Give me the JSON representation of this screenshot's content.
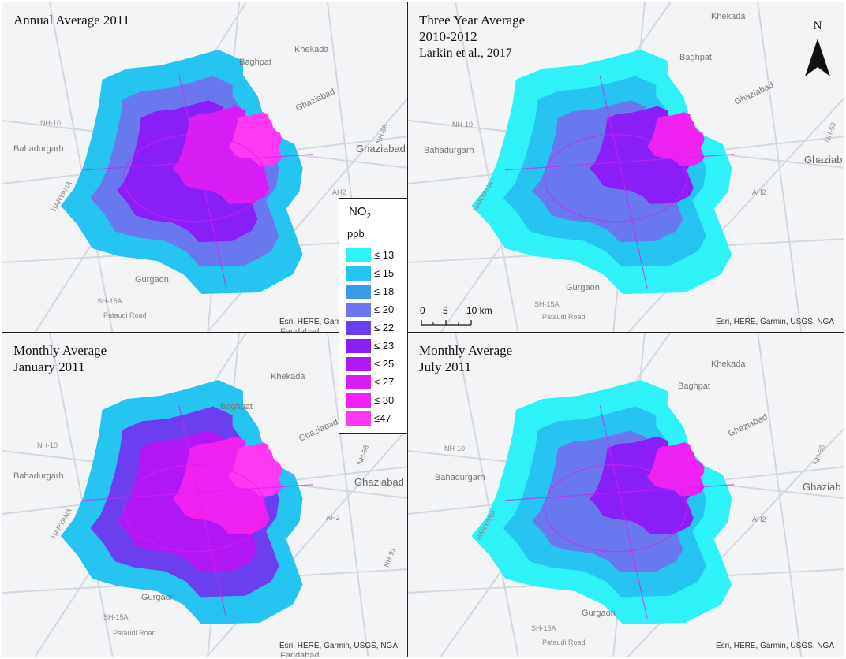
{
  "panels": [
    {
      "id": "annual",
      "title_lines": [
        "Annual Average 2011"
      ],
      "attribution": "Esri, HERE, Garmin, USGS, NGA",
      "labels": {
        "khekada": "Khekada",
        "baghpat": "Baghpat",
        "ghaziabad_small": "Ghaziabad",
        "ghaziabad": "Ghaziabad",
        "bahadurgarh": "Bahadurgarh",
        "haryana": "HARYANA",
        "gurgaon": "Gurgaon",
        "nh10": "NH-10",
        "nh58": "NH-58",
        "ah2": "AH2",
        "sh15a": "SH-15A",
        "pataudi": "Pataudi Road",
        "faridabad": "Faridabad"
      },
      "intensity": "medium"
    },
    {
      "id": "three-year",
      "title_lines": [
        "Three Year Average",
        "2010-2012",
        "Larkin et al., 2017"
      ],
      "attribution": "Esri, HERE, Garmin, USGS, NGA",
      "labels": {
        "khekada": "Khekada",
        "baghpat": "Baghpat",
        "ghaziabad_small": "Ghaziabad",
        "ghaziabad": "Ghaziab",
        "bahadurgarh": "Bahadurgarh",
        "haryana": "HARYANA",
        "gurgaon": "Gurgaon",
        "nh10": "NH-10",
        "nh58": "NH-58",
        "ah2": "AH2",
        "sh15a": "SH-15A",
        "pataudi": "Pataudi Road"
      },
      "intensity": "low"
    },
    {
      "id": "january",
      "title_lines": [
        "Monthly Average",
        "January 2011"
      ],
      "attribution": "Esri, HERE, Garmin, USGS, NGA",
      "labels": {
        "khekada": "Khekada",
        "baghpat": "Baghpat",
        "ghaziabad_small": "Ghaziabad",
        "ghaziabad": "Ghaziabad",
        "bahadurgarh": "Bahadurgarh",
        "haryana": "HARYANA",
        "gurgaon": "Gurgaon",
        "nh10": "NH-10",
        "nh58": "NH-58",
        "nh91": "NH-91",
        "ah2": "AH2",
        "sh15a": "SH-15A",
        "pataudi": "Pataudi Road",
        "faridabad": "Faridabad"
      },
      "intensity": "high"
    },
    {
      "id": "july",
      "title_lines": [
        "Monthly Average",
        "July 2011"
      ],
      "attribution": "Esri, HERE, Garmin, USGS, NGA",
      "labels": {
        "khekada": "Khekada",
        "baghpat": "Baghpat",
        "ghaziabad_small": "Ghaziabad",
        "ghaziabad": "Ghaziab",
        "bahadurgarh": "Bahadurgarh",
        "haryana": "HARYANA",
        "gurgaon": "Gurgaon",
        "nh10": "NH-10",
        "nh58": "NH-58",
        "ah2": "AH2",
        "sh15a": "SH-15A",
        "pataudi": "Pataudi Road"
      },
      "intensity": "low"
    }
  ],
  "legend": {
    "title": "NO",
    "title_sub": "2",
    "unit": "ppb",
    "classes": [
      {
        "label": "≤ 13",
        "color": "#2ef2f8"
      },
      {
        "label": "≤ 15",
        "color": "#26c4f0"
      },
      {
        "label": "≤ 18",
        "color": "#3a9ae8"
      },
      {
        "label": "≤ 20",
        "color": "#6a78ee"
      },
      {
        "label": "≤ 22",
        "color": "#6b3ff0"
      },
      {
        "label": "≤ 23",
        "color": "#8a1ef6"
      },
      {
        "label": "≤ 25",
        "color": "#b117f4"
      },
      {
        "label": "≤ 27",
        "color": "#d81ef4"
      },
      {
        "label": "≤ 30",
        "color": "#ef22f2"
      },
      {
        "label": "≤47",
        "color": "#ff39f2"
      }
    ]
  },
  "north_arrow": {
    "label": "N"
  },
  "scale_bar": {
    "ticks": [
      "0",
      "5",
      "10 km"
    ]
  },
  "colors": {
    "background": "#f3f4f6",
    "road": "#d3d8de",
    "frame": "#222222"
  }
}
